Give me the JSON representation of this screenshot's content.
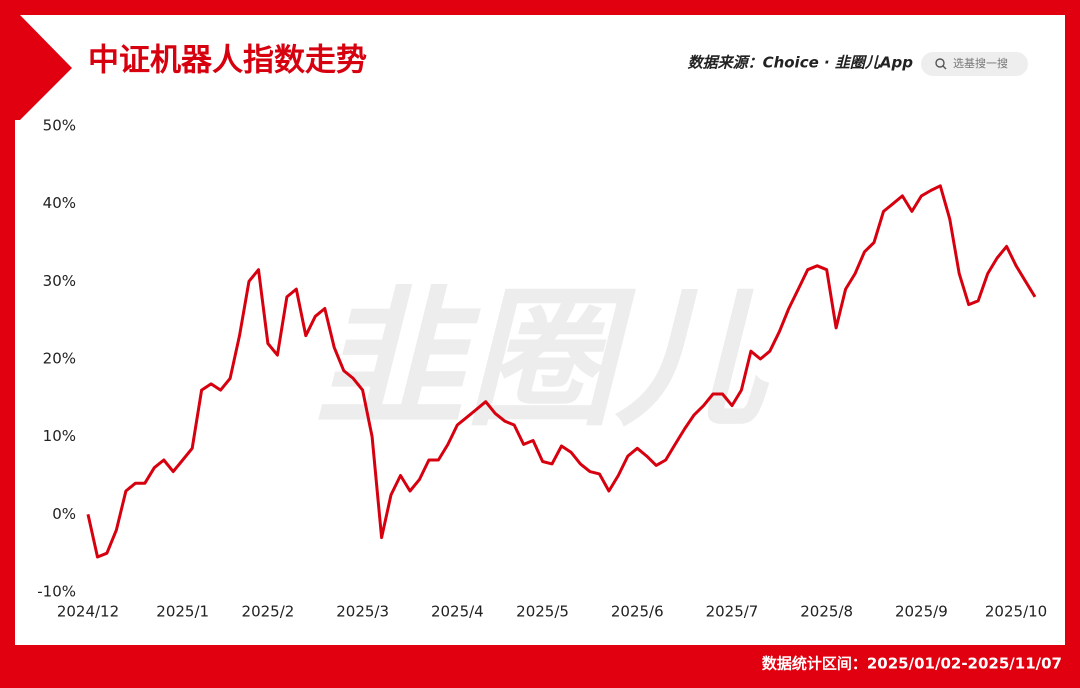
{
  "chart_data": {
    "type": "line",
    "title": "中证机器人指数走势",
    "source": "数据来源：Choice · 韭圈儿App",
    "search_placeholder": "选基搜一搜",
    "watermark": "韭圈儿",
    "footnote": "数据统计区间：2025/01/02-2025/11/07",
    "categories": [
      "2024/12",
      null,
      null,
      null,
      null,
      null,
      null,
      null,
      null,
      null,
      "2025/1",
      null,
      null,
      null,
      null,
      null,
      null,
      null,
      null,
      "2025/2",
      null,
      null,
      null,
      null,
      null,
      null,
      null,
      null,
      null,
      "2025/3",
      null,
      null,
      null,
      null,
      null,
      null,
      null,
      null,
      null,
      "2025/4",
      null,
      null,
      null,
      null,
      null,
      null,
      null,
      null,
      "2025/5",
      null,
      null,
      null,
      null,
      null,
      null,
      null,
      null,
      null,
      "2025/6",
      null,
      null,
      null,
      null,
      null,
      null,
      null,
      null,
      null,
      "2025/7",
      null,
      null,
      null,
      null,
      null,
      null,
      null,
      null,
      null,
      "2025/8",
      null,
      null,
      null,
      null,
      null,
      null,
      null,
      null,
      null,
      "2025/9",
      null,
      null,
      null,
      null,
      null,
      null,
      null,
      null,
      null,
      "2025/10",
      null,
      null
    ],
    "series": [
      {
        "name": "中证机器人",
        "color": "#d7000f",
        "values": [
          0,
          -5.5,
          -5,
          -2,
          3,
          4,
          4,
          6,
          7,
          5.5,
          7,
          8.5,
          16,
          16.8,
          16,
          17.5,
          23,
          30,
          31.5,
          22,
          20.5,
          28,
          29,
          23,
          25.5,
          26.5,
          21.5,
          18.5,
          17.5,
          16,
          10,
          -3,
          2.5,
          5,
          3,
          4.5,
          7,
          7,
          9,
          11.5,
          12.5,
          13.5,
          14.5,
          13,
          12,
          11.5,
          9,
          9.5,
          6.8,
          6.5,
          8.8,
          8,
          6.5,
          5.5,
          5.2,
          3,
          5,
          7.5,
          8.5,
          7.5,
          6.3,
          7,
          9,
          11,
          12.8,
          14,
          15.5,
          15.5,
          14,
          16,
          21,
          20,
          21,
          23.5,
          26.5,
          29,
          31.5,
          32,
          31.5,
          24,
          29,
          31,
          33.8,
          35,
          39,
          40,
          41,
          39,
          41,
          41.7,
          42.3,
          38,
          31,
          27,
          27.5,
          31,
          33,
          34.5,
          32,
          30,
          28
        ]
      }
    ],
    "ylim": [
      -10,
      50
    ],
    "yticks": [
      {
        "value": -10,
        "label": "-10%"
      },
      {
        "value": 0,
        "label": "0%"
      },
      {
        "value": 10,
        "label": "10%"
      },
      {
        "value": 20,
        "label": "20%"
      },
      {
        "value": 30,
        "label": "30%"
      },
      {
        "value": 40,
        "label": "40%"
      },
      {
        "value": 50,
        "label": "50%"
      }
    ],
    "grid": false
  }
}
